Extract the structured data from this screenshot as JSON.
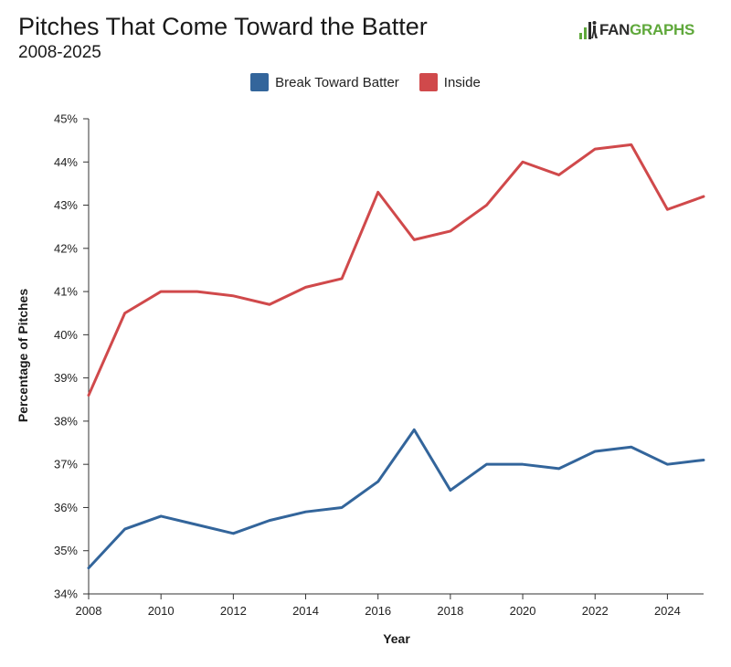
{
  "header": {
    "title": "Pitches That Come Toward the Batter",
    "subtitle": "2008-2025",
    "logo_text_dark": "FAN",
    "logo_text_green": "GRAPHS"
  },
  "colors": {
    "break_series": "#33659b",
    "inside_series": "#d0494b",
    "logo_green": "#5fa83b",
    "axis": "#333333"
  },
  "chart_data": {
    "type": "line",
    "x": [
      2008,
      2009,
      2010,
      2011,
      2012,
      2013,
      2014,
      2015,
      2016,
      2017,
      2018,
      2019,
      2020,
      2021,
      2022,
      2023,
      2024,
      2025
    ],
    "series": [
      {
        "name": "Break Toward Batter",
        "color": "#33659b",
        "values": [
          34.6,
          35.5,
          35.8,
          35.6,
          35.4,
          35.7,
          35.9,
          36.0,
          36.6,
          37.8,
          36.4,
          37.0,
          37.0,
          36.9,
          37.3,
          37.4,
          37.0,
          37.1
        ]
      },
      {
        "name": "Inside",
        "color": "#d0494b",
        "values": [
          38.6,
          40.5,
          41.0,
          41.0,
          40.9,
          40.7,
          41.1,
          41.3,
          43.3,
          42.2,
          42.4,
          43.0,
          44.0,
          43.7,
          44.3,
          44.4,
          42.9,
          43.2
        ]
      }
    ],
    "xlabel": "Year",
    "ylabel": "Percentage of Pitches",
    "xlim": [
      2008,
      2025
    ],
    "ylim": [
      34,
      45
    ],
    "x_ticks": [
      "2008",
      "2010",
      "2012",
      "2014",
      "2016",
      "2018",
      "2020",
      "2022",
      "2024"
    ],
    "y_ticks": [
      "34%",
      "35%",
      "36%",
      "37%",
      "38%",
      "39%",
      "40%",
      "41%",
      "42%",
      "43%",
      "44%",
      "45%"
    ],
    "grid": false,
    "legend_position": "top-center"
  }
}
